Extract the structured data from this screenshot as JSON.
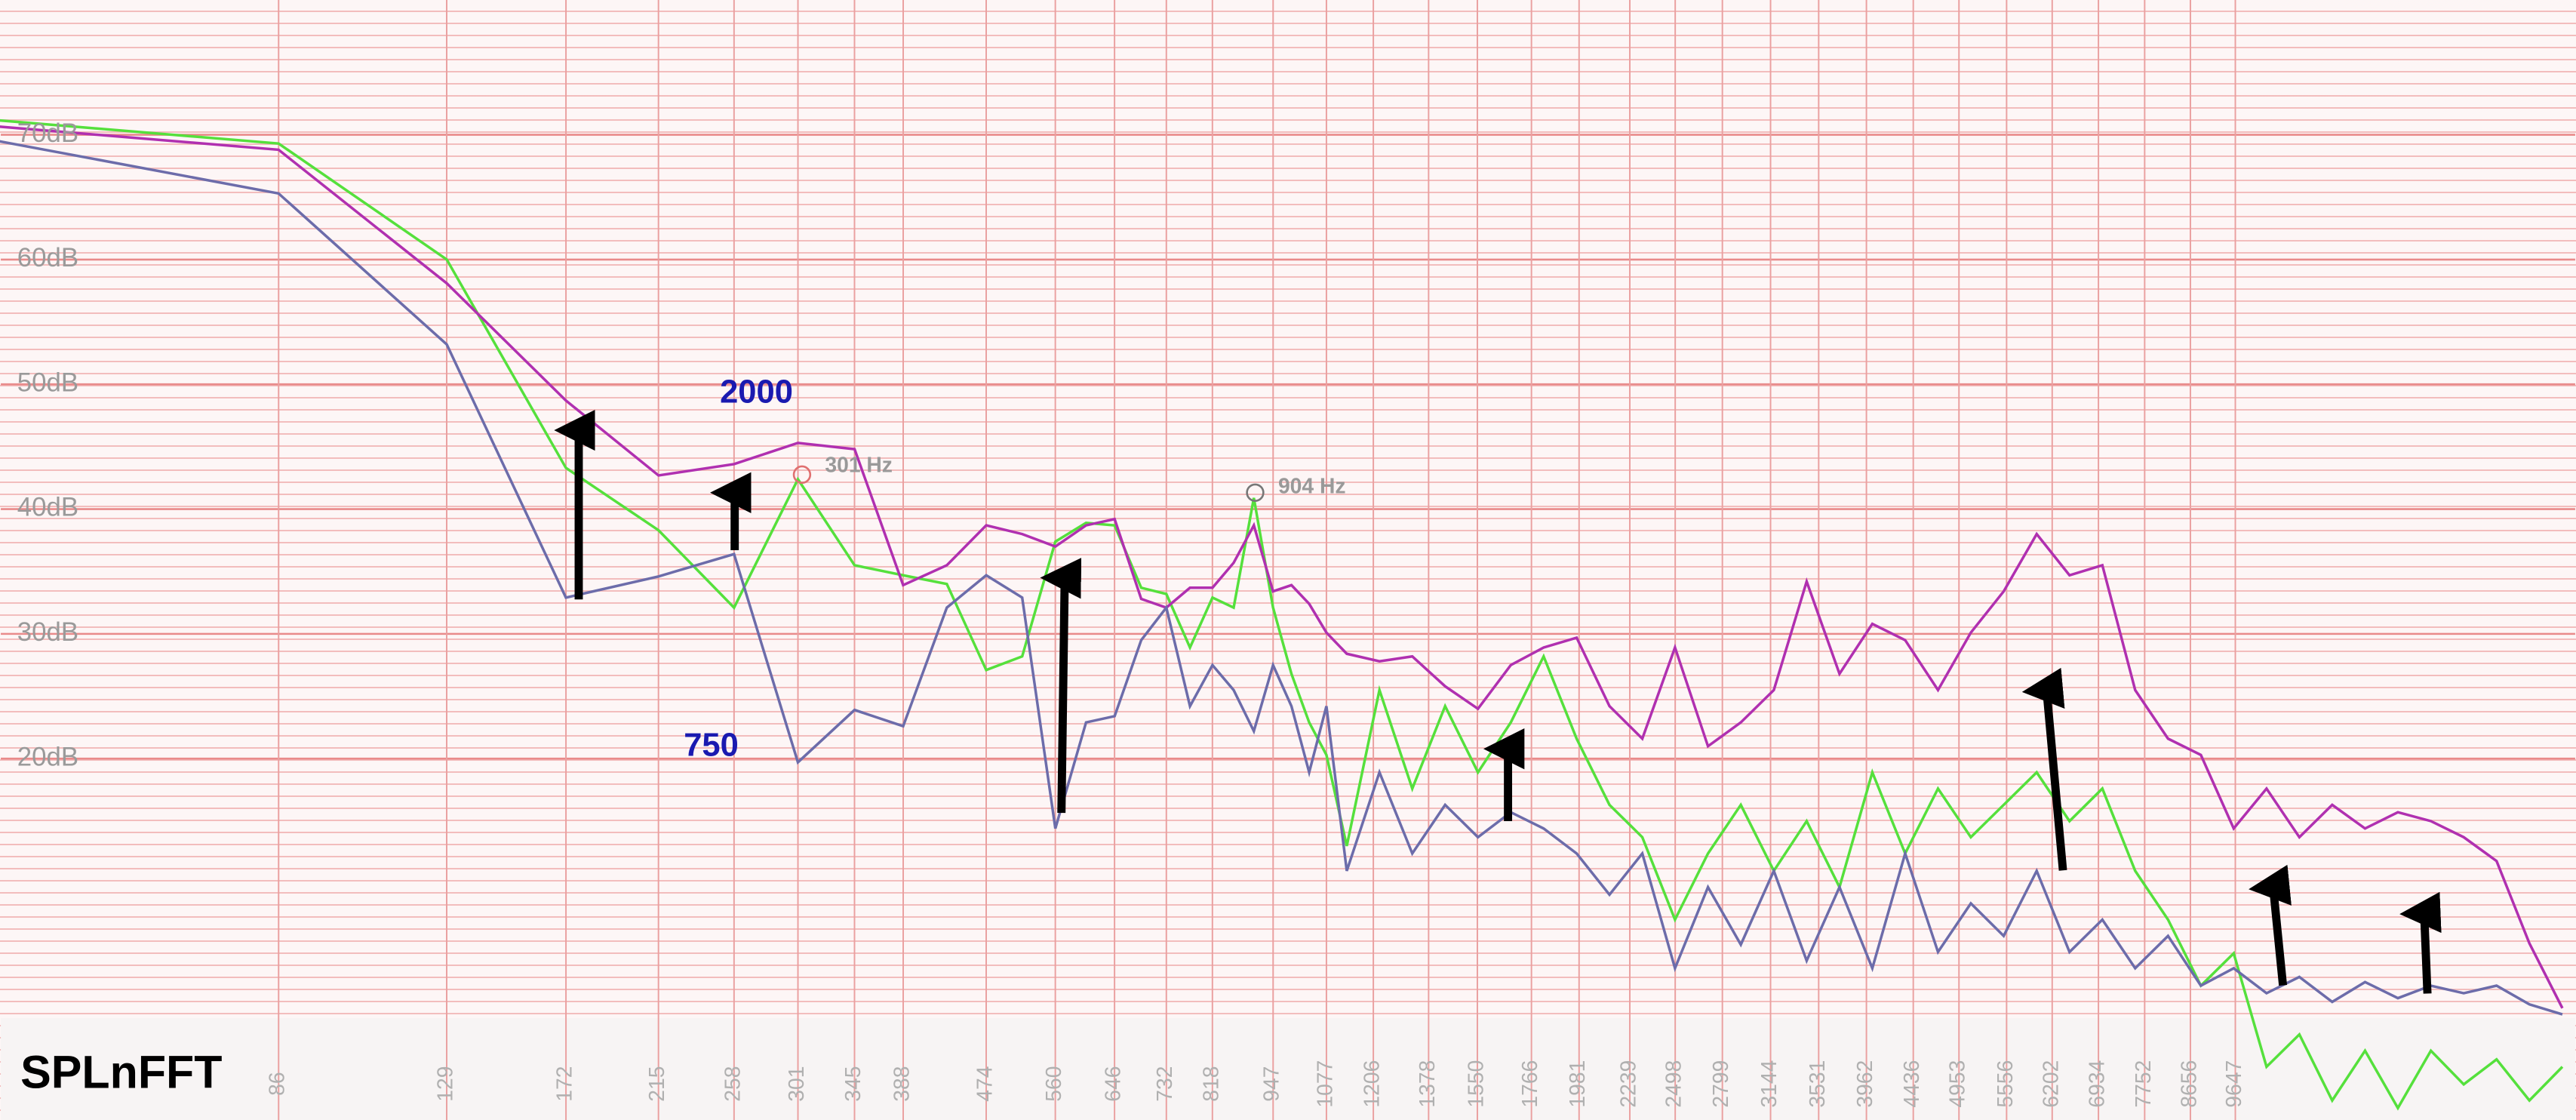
{
  "chart_data": {
    "type": "line",
    "xscale": "log",
    "grid": true,
    "x": [
      43,
      86,
      129,
      172,
      215,
      258,
      301,
      345,
      388,
      431,
      474,
      517,
      560,
      603,
      646,
      689,
      732,
      775,
      818,
      861,
      904,
      947,
      990,
      1033,
      1077,
      1131,
      1224,
      1325,
      1434,
      1552,
      1680,
      1819,
      1969,
      2132,
      2307,
      2497,
      2704,
      2926,
      3169,
      3430,
      3713,
      4019,
      4350,
      4709,
      5097,
      5517,
      5974,
      6466,
      6999,
      7577,
      8200,
      8877,
      9608,
      10400,
      11257,
      12187,
      13192,
      14281,
      15459,
      16737,
      18117,
      19610,
      21230
    ],
    "series": [
      {
        "color": "#55e03c",
        "values": [
          71.2,
          69.3,
          60,
          43.3,
          38.3,
          32.1,
          42.4,
          35.5,
          34.7,
          34,
          27.1,
          28.2,
          37.4,
          38.9,
          38.7,
          33.7,
          33.2,
          28.9,
          32.9,
          32.1,
          40.9,
          32.1,
          26.8,
          22.9,
          20.3,
          13,
          25.5,
          17.6,
          24.2,
          18.9,
          22.9,
          28.2,
          21.6,
          16.3,
          13.7,
          7.1,
          12.4,
          16.3,
          11,
          15,
          9.7,
          18.9,
          12.4,
          17.6,
          13.7,
          16.3,
          18.9,
          15,
          17.6,
          11,
          7.1,
          1.8,
          4.4,
          -4.7,
          -2.1,
          -7.4,
          -3.4,
          -8,
          -3.4,
          -6.1,
          -4.1,
          -7.4,
          -4.7
        ]
      },
      {
        "color": "#b030b0",
        "values": [
          70.7,
          68.8,
          58.1,
          48.7,
          42.7,
          43.6,
          45.3,
          44.8,
          33.9,
          35.5,
          38.7,
          38,
          37,
          38.7,
          39.2,
          32.8,
          32.1,
          33.7,
          33.7,
          35.7,
          38.7,
          33.4,
          33.9,
          32.4,
          30.1,
          28.4,
          27.8,
          28.2,
          25.8,
          24,
          27.5,
          28.9,
          29.7,
          24.2,
          21.6,
          28.9,
          21,
          22.9,
          25.5,
          34.2,
          26.8,
          30.8,
          29.5,
          25.5,
          30.1,
          33.4,
          38,
          34.7,
          35.5,
          25.5,
          21.6,
          20.3,
          14.4,
          17.6,
          13.7,
          16.3,
          14.4,
          15.7,
          15,
          13.7,
          11.8,
          5.2,
          0
        ]
      },
      {
        "color": "#6c6caa",
        "values": [
          69.6,
          65.3,
          53.2,
          32.9,
          34.6,
          36.4,
          19.7,
          23.9,
          22.6,
          32.1,
          34.7,
          32.9,
          14.4,
          22.9,
          23.4,
          29.5,
          32.1,
          24.2,
          27.5,
          25.5,
          22.2,
          27.5,
          24.2,
          18.9,
          24.2,
          11,
          18.9,
          12.4,
          16.3,
          13.7,
          15.7,
          14.4,
          12.4,
          9.1,
          12.4,
          3.2,
          9.7,
          5.1,
          11,
          3.8,
          9.7,
          3.2,
          12.4,
          4.5,
          8.4,
          5.8,
          11,
          4.5,
          7.1,
          3.2,
          5.8,
          1.8,
          3.2,
          1.2,
          2.5,
          0.5,
          2.1,
          0.8,
          1.8,
          1.2,
          1.8,
          0.3,
          -0.5
        ]
      }
    ],
    "xlim": [
      44,
      21900
    ],
    "xticks": [
      86,
      129,
      172,
      215,
      258,
      301,
      345,
      388,
      474,
      560,
      646,
      732,
      818,
      947,
      1077,
      1206,
      1378,
      1550,
      1766,
      1981,
      2239,
      2498,
      2799,
      3144,
      3531,
      3962,
      4436,
      4953,
      5556,
      6202,
      6934,
      7752,
      8656,
      9647
    ],
    "ylim": [
      -0.8,
      80.8
    ],
    "yticks": [
      {
        "value": 20,
        "label": "20dB"
      },
      {
        "value": 30,
        "label": "30dB"
      },
      {
        "value": 40,
        "label": "40dB"
      },
      {
        "value": 50,
        "label": "50dB"
      },
      {
        "value": 60,
        "label": "60dB"
      },
      {
        "value": 70,
        "label": "70dB"
      }
    ],
    "annotations": [
      "2000",
      "750",
      "301 Hz",
      "904 Hz"
    ],
    "app_name": "SPLnFFT"
  }
}
